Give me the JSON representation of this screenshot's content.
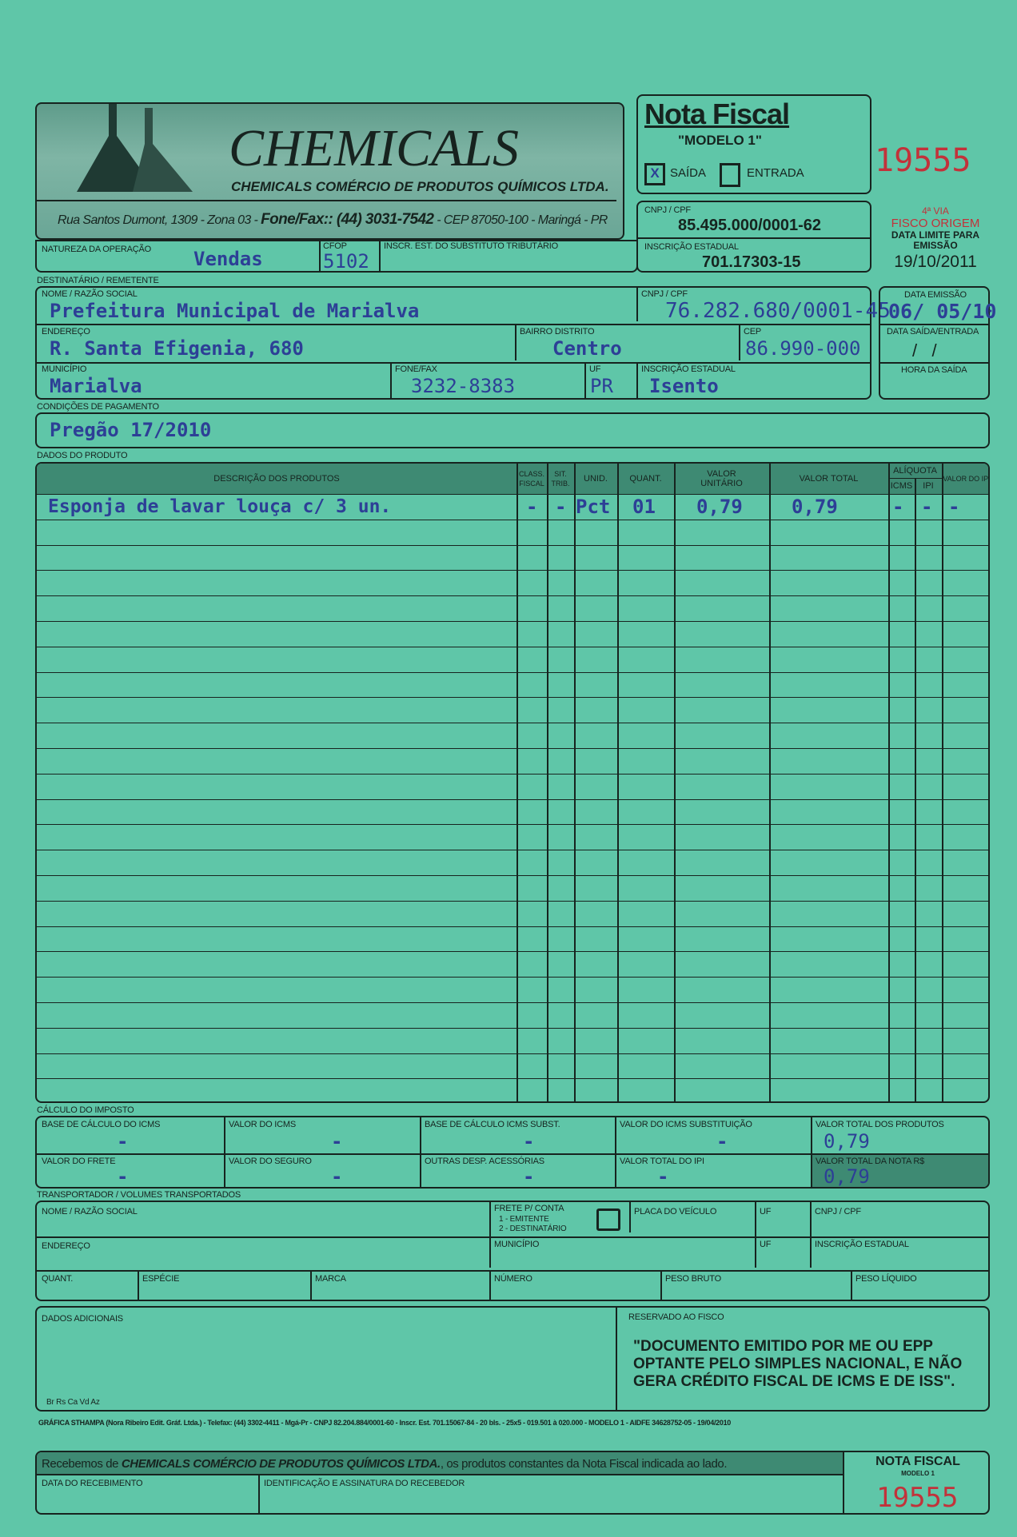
{
  "emitter": {
    "logo_text": "CHEMICALS",
    "company": "CHEMICALS COMÉRCIO DE PRODUTOS QUÍMICOS LTDA.",
    "address": "Rua Santos Dumont, 1309 - Zona 03 - ",
    "phone_label": "Fone/Fax:: (44) 3031-7542",
    "address2": " - CEP 87050-100 - Maringá - PR"
  },
  "header": {
    "title": "Nota Fiscal",
    "model": "\"MODELO 1\"",
    "saida_label": "SAÍDA",
    "entrada_label": "ENTRADA",
    "saida_mark": "X",
    "number": "19555",
    "cnpj_label": "CNPJ / CPF",
    "cnpj": "85.495.000/0001-62",
    "ie_label": "INSCRIÇÃO ESTADUAL",
    "ie": "701.17303-15",
    "via": "4ª VIA",
    "via_dest": "FISCO ORIGEM",
    "limit_label": "DATA LIMITE PARA EMISSÃO",
    "limit_date": "19/10/2011"
  },
  "operation": {
    "natureza_label": "NATUREZA DA OPERAÇÃO",
    "natureza": "Vendas",
    "cfop_label": "CFOP",
    "cfop": "5102",
    "subst_label": "INSCR. EST. DO SUBSTITUTO TRIBUTÁRIO"
  },
  "recipient": {
    "section": "DESTINATÁRIO / REMETENTE",
    "name_label": "NOME / RAZÃO SOCIAL",
    "name": "Prefeitura Municipal de Marialva",
    "cnpj_label": "CNPJ / CPF",
    "cnpj": "76.282.680/0001-45",
    "address_label": "ENDEREÇO",
    "address": "R. Santa Efigenia, 680",
    "bairro_label": "BAIRRO DISTRITO",
    "bairro": "Centro",
    "cep_label": "CEP",
    "cep": "86.990-000",
    "city_label": "MUNICÍPIO",
    "city": "Marialva",
    "phone_label": "FONE/FAX",
    "phone": "3232-8383",
    "uf_label": "UF",
    "uf": "PR",
    "ie_label": "INSCRIÇÃO ESTADUAL",
    "ie": "Isento"
  },
  "dates": {
    "emissao_label": "DATA EMISSÃO",
    "emissao": "06/ 05/10",
    "saida_label": "DATA SAÍDA/ENTRADA",
    "saida": "/   /",
    "hora_label": "HORA DA SAÍDA"
  },
  "payment": {
    "label": "CONDIÇÕES DE PAGAMENTO",
    "value": "Pregão 17/2010"
  },
  "products": {
    "section": "DADOS DO PRODUTO",
    "headers": {
      "desc": "DESCRIÇÃO DOS PRODUTOS",
      "class": "CLASS. FISCAL",
      "sit": "SIT. TRIB.",
      "unid": "UNID.",
      "quant": "QUANT.",
      "unit": "VALOR UNITÁRIO",
      "total": "VALOR TOTAL",
      "aliquota": "ALÍQUOTA",
      "icms": "ICMS",
      "ipi": "IPI",
      "valor_ipi": "VALOR DO IPI"
    },
    "items": [
      {
        "desc": "Esponja de lavar louça c/ 3 un.",
        "class": "-",
        "sit": "-",
        "unid": "Pct",
        "quant": "01",
        "unit": "0,79",
        "total": "0,79",
        "icms": "-",
        "ipi": "-",
        "valor_ipi": "-"
      }
    ]
  },
  "tax": {
    "section": "CÁLCULO DO IMPOSTO",
    "base_icms_label": "BASE DE CÁLCULO DO ICMS",
    "base_icms": "-",
    "icms_label": "VALOR DO ICMS",
    "icms": "-",
    "base_subst_label": "BASE DE CÁLCULO ICMS SUBST.",
    "base_subst": "-",
    "icms_subst_label": "VALOR DO ICMS SUBSTITUIÇÃO",
    "icms_subst": "-",
    "total_prod_label": "VALOR TOTAL DOS PRODUTOS",
    "total_prod": "0,79",
    "frete_label": "VALOR DO FRETE",
    "frete": "-",
    "seguro_label": "VALOR DO SEGURO",
    "seguro": "-",
    "outras_label": "OUTRAS DESP. ACESSÓRIAS",
    "outras": "-",
    "ipi_label": "VALOR TOTAL DO IPI",
    "ipi": "-",
    "total_nota_label": "VALOR TOTAL DA NOTA R$",
    "total_nota": "0,79"
  },
  "transport": {
    "section": "TRANSPORTADOR / VOLUMES TRANSPORTADOS",
    "name_label": "NOME / RAZÃO SOCIAL",
    "frete_label": "FRETE P/ CONTA",
    "frete_opt1": "1 - EMITENTE",
    "frete_opt2": "2 - DESTINATÁRIO",
    "placa_label": "PLACA DO VEÍCULO",
    "uf_label": "UF",
    "cnpj_label": "CNPJ / CPF",
    "address_label": "ENDEREÇO",
    "city_label": "MUNICÍPIO",
    "uf2_label": "UF",
    "ie_label": "INSCRIÇÃO ESTADUAL",
    "quant_label": "QUANT.",
    "especie_label": "ESPÉCIE",
    "marca_label": "MARCA",
    "numero_label": "NÚMERO",
    "bruto_label": "PESO BRUTO",
    "liquido_label": "PESO LÍQUIDO"
  },
  "additional": {
    "label": "DADOS ADICIONAIS",
    "codes": "Br Rs Ca Vd Az",
    "fisco_label": "RESERVADO AO FISCO",
    "fisco_text": "\"DOCUMENTO EMITIDO POR ME OU EPP OPTANTE PELO SIMPLES NACIONAL, E NÃO GERA CRÉDITO FISCAL DE ICMS E DE ISS\"."
  },
  "printer": "GRÁFICA STHAMPA (Nora Ribeiro Edit. Gráf. Ltda.) - Telefax: (44) 3302-4411 - Mgá-Pr - CNPJ 82.204.884/0001-60 - Inscr. Est. 701.15067-84 - 20 bls. - 25x5 - 019.501 à 020.000 - MODELO 1 - AIDFE 34628752-05 - 19/04/2010",
  "receipt": {
    "pre": "Recebemos de ",
    "company": "CHEMICALS COMÉRCIO DE PRODUTOS QUÍMICOS LTDA.",
    "post": ", os produtos constantes da Nota Fiscal indicada ao lado.",
    "date_label": "DATA DO RECEBIMENTO",
    "sign_label": "IDENTIFICAÇÃO E ASSINATURA DO RECEBEDOR",
    "nf_label": "NOTA FISCAL",
    "nf_model": "MODELO 1",
    "number": "19555"
  },
  "colors": {
    "paper": "#5fc6a8",
    "ink": "#2d3f96",
    "red": "#c2323a"
  }
}
